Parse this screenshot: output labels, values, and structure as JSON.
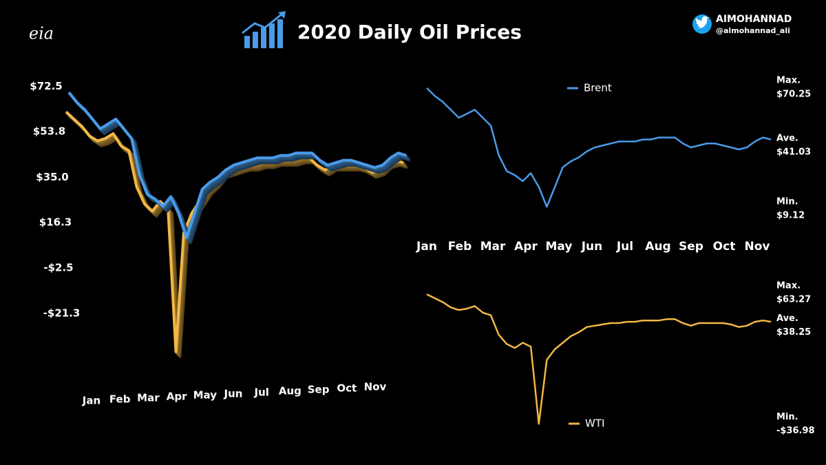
{
  "header": {
    "logo": "eia",
    "title": "2020 Daily Oil Prices",
    "handle": "AIMOHANNAD",
    "username": "@almohannad_ali"
  },
  "chart_data": [
    {
      "type": "line3d",
      "source_series": [
        1,
        2
      ],
      "ylim": [
        -40,
        80
      ],
      "yticks": [
        {
          "value": 72.5,
          "label": "$72.5"
        },
        {
          "value": 53.8,
          "label": "$53.8"
        },
        {
          "value": 35.0,
          "label": "$35.0"
        },
        {
          "value": 16.3,
          "label": "$16.3"
        },
        {
          "value": -2.5,
          "label": "-$2.5"
        },
        {
          "value": -21.3,
          "label": "-$21.3"
        }
      ],
      "xticks": [
        "Jan",
        "Feb",
        "Mar",
        "Apr",
        "May",
        "Jun",
        "Jul",
        "Aug",
        "Sep",
        "Oct",
        "Nov"
      ]
    },
    {
      "type": "line",
      "ylim": [
        0,
        80
      ],
      "xticks": [
        "Jan",
        "Feb",
        "Mar",
        "Apr",
        "May",
        "Jun",
        "Jul",
        "Aug",
        "Sep",
        "Oct",
        "Nov"
      ],
      "series": [
        {
          "name": "Brent",
          "color": "#4a9be8",
          "values": [
            70,
            66,
            63,
            59,
            55,
            57,
            59,
            55,
            51,
            36,
            28,
            26,
            23,
            27,
            20,
            10,
            20,
            30,
            33,
            35,
            38,
            40,
            41,
            42,
            43,
            43,
            43,
            44,
            44,
            45,
            45,
            45,
            42,
            40,
            41,
            42,
            42,
            41,
            40,
            39,
            40,
            43,
            45,
            44
          ]
        }
      ],
      "stat_labels": [
        "Max.",
        "Ave.",
        "Min."
      ],
      "stats": [
        70.25,
        41.03,
        9.12
      ],
      "stat_value_labels": [
        "$70.25",
        "$41.03",
        "$9.12"
      ]
    },
    {
      "type": "line",
      "ylim": [
        -40,
        70
      ],
      "series": [
        {
          "name": "WTI",
          "color": "#f2b845",
          "values": [
            62,
            59,
            56,
            52,
            50,
            51,
            53,
            48,
            46,
            31,
            24,
            21,
            25,
            22,
            -37,
            12,
            20,
            25,
            30,
            33,
            37,
            38,
            39,
            40,
            40,
            41,
            41,
            42,
            42,
            42,
            43,
            43,
            40,
            38,
            40,
            40,
            40,
            40,
            39,
            37,
            38,
            41,
            42,
            41
          ]
        }
      ],
      "stat_labels": [
        "Max.",
        "Ave.",
        "Min."
      ],
      "stats": [
        63.27,
        38.25,
        -36.98
      ],
      "stat_value_labels": [
        "$63.27",
        "$38.25",
        "-$36.98"
      ]
    }
  ]
}
